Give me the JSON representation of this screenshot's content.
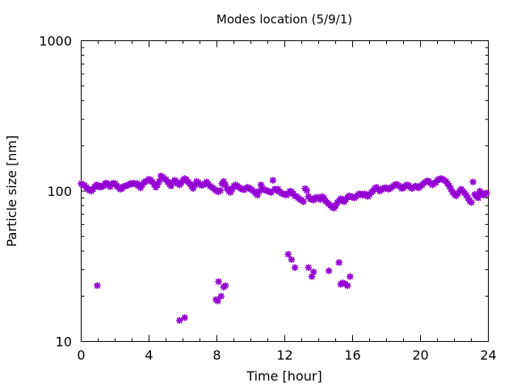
{
  "chart_data": {
    "type": "scatter",
    "title": "Modes location (5/9/1)",
    "xlabel": "Time [hour]",
    "ylabel": "Particle size [nm]",
    "xlim": [
      0,
      24
    ],
    "ylim": [
      10,
      1000
    ],
    "yscale": "log",
    "xticks": [
      0,
      4,
      8,
      12,
      16,
      20,
      24
    ],
    "xtick_labels": [
      "0",
      "4",
      "8",
      "12",
      "16",
      "20",
      "24"
    ],
    "yticks": [
      10,
      100,
      1000
    ],
    "ytick_labels": [
      "10",
      "100",
      "1000"
    ],
    "grid": false,
    "legend": "none",
    "marker_color": "#9400d3",
    "series": [
      {
        "values": [
          [
            0.0,
            112
          ],
          [
            0.1,
            110
          ],
          [
            0.2,
            109
          ],
          [
            0.3,
            106
          ],
          [
            0.4,
            103
          ],
          [
            0.5,
            101
          ],
          [
            0.6,
            100
          ],
          [
            0.7,
            103
          ],
          [
            0.8,
            107
          ],
          [
            0.9,
            110
          ],
          [
            1.0,
            109
          ],
          [
            1.1,
            106
          ],
          [
            1.2,
            107
          ],
          [
            1.3,
            108
          ],
          [
            1.4,
            112
          ],
          [
            1.5,
            113
          ],
          [
            1.6,
            110
          ],
          [
            1.7,
            107
          ],
          [
            1.8,
            111
          ],
          [
            1.9,
            113
          ],
          [
            2.0,
            112
          ],
          [
            2.1,
            108
          ],
          [
            2.2,
            106
          ],
          [
            2.3,
            103
          ],
          [
            2.4,
            104
          ],
          [
            2.5,
            107
          ],
          [
            2.6,
            108
          ],
          [
            2.7,
            109
          ],
          [
            2.8,
            110
          ],
          [
            2.9,
            112
          ],
          [
            3.0,
            112
          ],
          [
            3.1,
            113
          ],
          [
            3.2,
            111
          ],
          [
            3.3,
            112
          ],
          [
            3.4,
            108
          ],
          [
            3.5,
            105
          ],
          [
            3.6,
            110
          ],
          [
            3.7,
            114
          ],
          [
            3.8,
            116
          ],
          [
            3.9,
            117
          ],
          [
            4.0,
            120
          ],
          [
            4.1,
            118
          ],
          [
            4.2,
            115
          ],
          [
            4.3,
            111
          ],
          [
            4.4,
            106
          ],
          [
            4.5,
            110
          ],
          [
            4.6,
            116
          ],
          [
            4.7,
            126
          ],
          [
            4.8,
            124
          ],
          [
            4.9,
            121
          ],
          [
            5.0,
            119
          ],
          [
            5.1,
            115
          ],
          [
            5.2,
            111
          ],
          [
            5.3,
            108
          ],
          [
            5.4,
            114
          ],
          [
            5.5,
            118
          ],
          [
            5.6,
            116
          ],
          [
            5.7,
            112
          ],
          [
            5.8,
            110
          ],
          [
            5.9,
            113
          ],
          [
            6.0,
            118
          ],
          [
            6.1,
            121
          ],
          [
            6.2,
            119
          ],
          [
            6.3,
            115
          ],
          [
            6.4,
            112
          ],
          [
            6.5,
            108
          ],
          [
            6.6,
            104
          ],
          [
            6.7,
            110
          ],
          [
            6.8,
            116
          ],
          [
            6.9,
            114
          ],
          [
            7.0,
            111
          ],
          [
            7.1,
            109
          ],
          [
            7.2,
            110
          ],
          [
            7.3,
            112
          ],
          [
            7.4,
            115
          ],
          [
            7.5,
            111
          ],
          [
            7.6,
            108
          ],
          [
            7.7,
            106
          ],
          [
            7.8,
            104
          ],
          [
            7.9,
            102
          ],
          [
            8.0,
            100
          ],
          [
            8.1,
            99
          ],
          [
            8.2,
            101
          ],
          [
            8.3,
            112
          ],
          [
            8.4,
            116
          ],
          [
            8.5,
            110
          ],
          [
            8.6,
            104
          ],
          [
            8.7,
            100
          ],
          [
            8.8,
            98
          ],
          [
            8.9,
            103
          ],
          [
            9.0,
            108
          ],
          [
            9.1,
            110
          ],
          [
            9.2,
            108
          ],
          [
            9.3,
            106
          ],
          [
            9.4,
            104
          ],
          [
            9.5,
            103
          ],
          [
            9.6,
            102
          ],
          [
            9.7,
            104
          ],
          [
            9.8,
            106
          ],
          [
            9.9,
            105
          ],
          [
            10.0,
            103
          ],
          [
            10.1,
            101
          ],
          [
            10.2,
            99
          ],
          [
            10.3,
            96
          ],
          [
            10.4,
            94
          ],
          [
            10.5,
            100
          ],
          [
            10.6,
            110
          ],
          [
            10.7,
            104
          ],
          [
            10.8,
            102
          ],
          [
            10.9,
            101
          ],
          [
            11.0,
            100
          ],
          [
            11.1,
            99
          ],
          [
            11.2,
            98
          ],
          [
            11.3,
            118
          ],
          [
            11.4,
            103
          ],
          [
            11.5,
            101
          ],
          [
            11.6,
            103
          ],
          [
            11.7,
            99
          ],
          [
            11.8,
            97
          ],
          [
            11.9,
            96
          ],
          [
            12.0,
            95
          ],
          [
            12.1,
            94
          ],
          [
            12.2,
            96
          ],
          [
            12.3,
            100
          ],
          [
            12.4,
            99
          ],
          [
            12.5,
            96
          ],
          [
            12.6,
            93
          ],
          [
            12.7,
            92
          ],
          [
            12.8,
            90
          ],
          [
            12.9,
            88
          ],
          [
            13.0,
            87
          ],
          [
            13.1,
            85
          ],
          [
            13.2,
            104
          ],
          [
            13.3,
            101
          ],
          [
            13.4,
            92
          ],
          [
            13.5,
            89
          ],
          [
            13.6,
            88
          ],
          [
            13.7,
            87
          ],
          [
            13.8,
            90
          ],
          [
            13.9,
            91
          ],
          [
            14.0,
            89
          ],
          [
            14.1,
            88
          ],
          [
            14.2,
            92
          ],
          [
            14.3,
            90
          ],
          [
            14.4,
            86
          ],
          [
            14.5,
            84
          ],
          [
            14.6,
            82
          ],
          [
            14.7,
            80
          ],
          [
            14.8,
            78
          ],
          [
            14.9,
            77
          ],
          [
            15.0,
            80
          ],
          [
            15.1,
            84
          ],
          [
            15.2,
            86
          ],
          [
            15.3,
            89
          ],
          [
            15.4,
            87
          ],
          [
            15.5,
            85
          ],
          [
            15.6,
            88
          ],
          [
            15.7,
            91
          ],
          [
            15.8,
            93
          ],
          [
            15.9,
            92
          ],
          [
            16.0,
            91
          ],
          [
            16.1,
            90
          ],
          [
            16.2,
            92
          ],
          [
            16.3,
            94
          ],
          [
            16.4,
            96
          ],
          [
            16.5,
            95
          ],
          [
            16.6,
            94
          ],
          [
            16.7,
            96
          ],
          [
            16.8,
            94
          ],
          [
            16.9,
            92
          ],
          [
            17.0,
            95
          ],
          [
            17.1,
            98
          ],
          [
            17.2,
            100
          ],
          [
            17.3,
            104
          ],
          [
            17.4,
            106
          ],
          [
            17.5,
            103
          ],
          [
            17.6,
            100
          ],
          [
            17.7,
            102
          ],
          [
            17.8,
            104
          ],
          [
            17.9,
            105
          ],
          [
            18.0,
            105
          ],
          [
            18.1,
            103
          ],
          [
            18.2,
            104
          ],
          [
            18.3,
            106
          ],
          [
            18.4,
            108
          ],
          [
            18.5,
            110
          ],
          [
            18.6,
            111
          ],
          [
            18.7,
            109
          ],
          [
            18.8,
            107
          ],
          [
            18.9,
            104
          ],
          [
            19.0,
            105
          ],
          [
            19.1,
            108
          ],
          [
            19.2,
            110
          ],
          [
            19.3,
            109
          ],
          [
            19.4,
            106
          ],
          [
            19.5,
            104
          ],
          [
            19.6,
            106
          ],
          [
            19.7,
            108
          ],
          [
            19.8,
            107
          ],
          [
            19.9,
            105
          ],
          [
            20.0,
            108
          ],
          [
            20.1,
            110
          ],
          [
            20.2,
            113
          ],
          [
            20.3,
            115
          ],
          [
            20.4,
            117
          ],
          [
            20.5,
            116
          ],
          [
            20.6,
            113
          ],
          [
            20.7,
            110
          ],
          [
            20.8,
            112
          ],
          [
            20.9,
            114
          ],
          [
            21.0,
            118
          ],
          [
            21.1,
            120
          ],
          [
            21.2,
            121
          ],
          [
            21.3,
            120
          ],
          [
            21.4,
            118
          ],
          [
            21.5,
            116
          ],
          [
            21.6,
            112
          ],
          [
            21.7,
            108
          ],
          [
            21.8,
            103
          ],
          [
            21.9,
            98
          ],
          [
            22.0,
            95
          ],
          [
            22.1,
            93
          ],
          [
            22.2,
            96
          ],
          [
            22.3,
            100
          ],
          [
            22.4,
            103
          ],
          [
            22.5,
            100
          ],
          [
            22.6,
            97
          ],
          [
            22.7,
            94
          ],
          [
            22.8,
            90
          ],
          [
            22.9,
            86
          ],
          [
            23.0,
            84
          ],
          [
            23.1,
            115
          ],
          [
            23.2,
            95
          ],
          [
            23.3,
            92
          ],
          [
            23.4,
            90
          ],
          [
            23.5,
            100
          ],
          [
            23.6,
            97
          ],
          [
            23.7,
            94
          ],
          [
            23.8,
            95
          ],
          [
            23.9,
            97
          ],
          [
            0.95,
            23.5
          ],
          [
            5.8,
            13.8
          ],
          [
            6.1,
            14.4
          ],
          [
            7.95,
            19.0
          ],
          [
            8.05,
            18.6
          ],
          [
            8.1,
            25.0
          ],
          [
            8.25,
            20.0
          ],
          [
            8.4,
            23.0
          ],
          [
            8.5,
            23.5
          ],
          [
            12.2,
            38.0
          ],
          [
            12.4,
            35.0
          ],
          [
            12.6,
            31.0
          ],
          [
            13.4,
            31.0
          ],
          [
            13.6,
            27.0
          ],
          [
            13.7,
            29.0
          ],
          [
            14.6,
            29.5
          ],
          [
            15.2,
            33.5
          ],
          [
            15.3,
            24.0
          ],
          [
            15.4,
            24.5
          ],
          [
            15.55,
            24.2
          ],
          [
            15.7,
            23.5
          ],
          [
            15.85,
            27.0
          ]
        ]
      }
    ]
  }
}
